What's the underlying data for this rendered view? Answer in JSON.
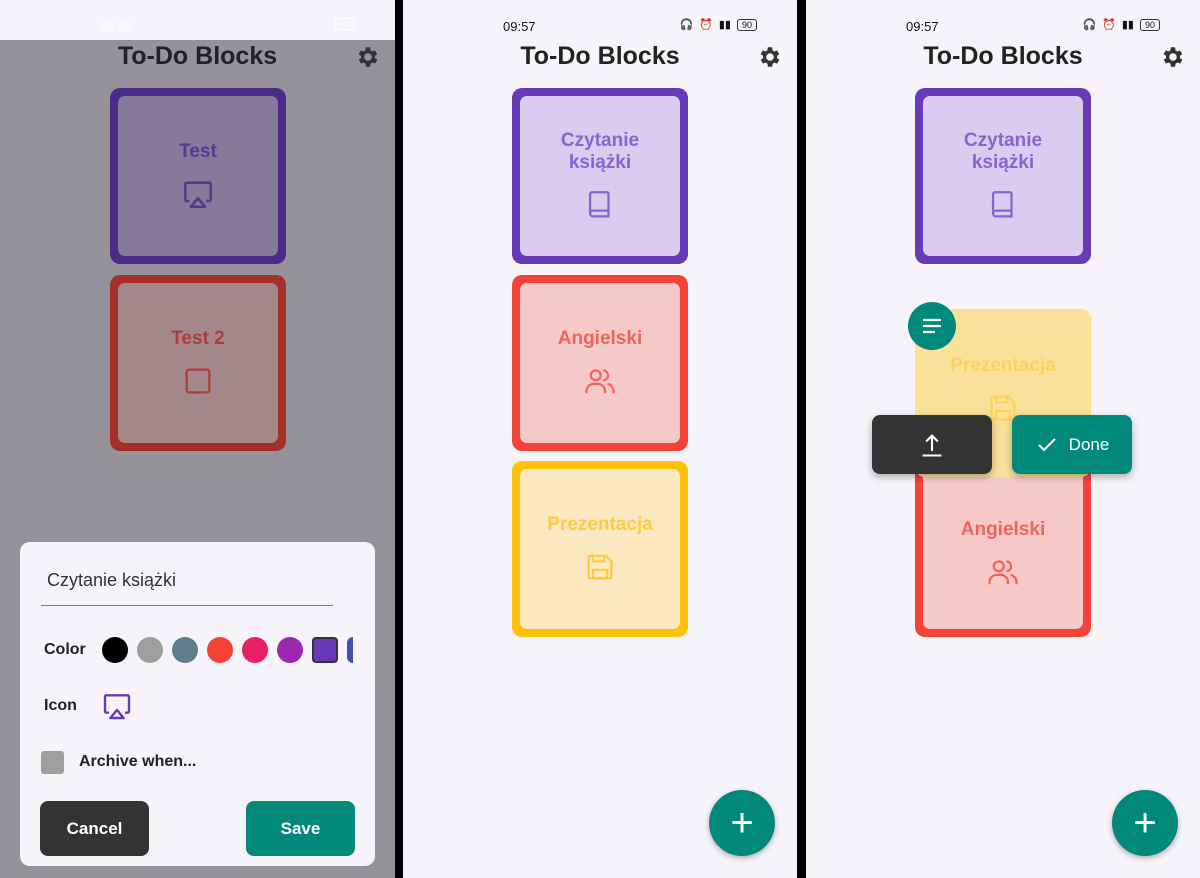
{
  "app_title": "To-Do Blocks",
  "panel1": {
    "status": {
      "time": "09:56",
      "battery": "90"
    },
    "blocks": [
      {
        "label": "Test",
        "icon": "airplay-icon",
        "color": "#673ab7"
      },
      {
        "label": "Test 2",
        "icon": "square-icon",
        "color": "#f44336"
      }
    ],
    "dialog": {
      "name_value": "Czytanie książki",
      "color_label": "Color",
      "icon_label": "Icon",
      "archive_label": "Archive when...",
      "cancel": "Cancel",
      "save": "Save",
      "colors": [
        "#000000",
        "#9e9e9e",
        "#607d8b",
        "#f44336",
        "#e91e63",
        "#9c27b0",
        "#673ab7",
        "#3f51b5"
      ],
      "selected_color": "#673ab7",
      "archive_checked": false
    }
  },
  "panel2": {
    "status": {
      "time": "09:57",
      "battery": "90"
    },
    "blocks": [
      {
        "label": "Czytanie książki",
        "icon": "book-icon",
        "color": "#673ab7"
      },
      {
        "label": "Angielski",
        "icon": "people-icon",
        "color": "#f44336"
      },
      {
        "label": "Prezentacja",
        "icon": "save-icon",
        "color": "#ffc107"
      }
    ],
    "fab": "+"
  },
  "panel3": {
    "status": {
      "time": "09:57",
      "battery": "90"
    },
    "blocks": [
      {
        "label": "Czytanie książki",
        "icon": "book-icon",
        "color": "#673ab7"
      },
      {
        "label": "Prezentacja",
        "icon": "save-icon",
        "color": "#ffc107"
      },
      {
        "label": "Angielski",
        "icon": "people-icon",
        "color": "#f44336"
      }
    ],
    "done_label": "Done",
    "fab": "+"
  }
}
